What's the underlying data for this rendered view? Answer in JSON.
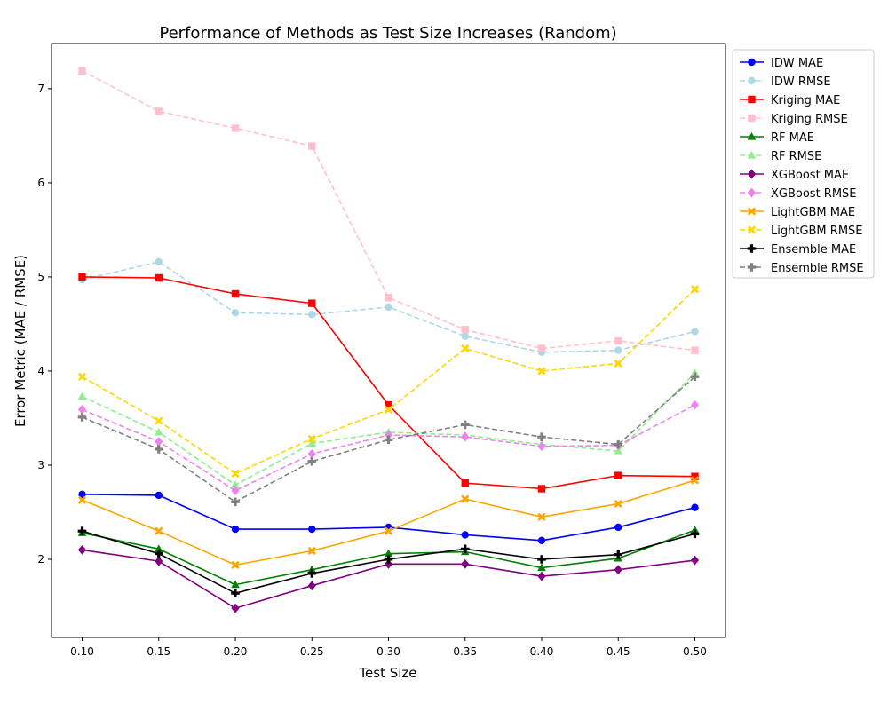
{
  "chart_data": {
    "type": "line",
    "title": "Performance of Methods as Test Size Increases (Random)",
    "xlabel": "Test Size",
    "ylabel": "Error Metric (MAE / RMSE)",
    "xlim": [
      0.08,
      0.52
    ],
    "ylim": [
      1.17,
      7.48
    ],
    "x": [
      0.1,
      0.15,
      0.2,
      0.25,
      0.3,
      0.35,
      0.4,
      0.45,
      0.5
    ],
    "xticks": [
      "0.10",
      "0.15",
      "0.20",
      "0.25",
      "0.30",
      "0.35",
      "0.40",
      "0.45",
      "0.50"
    ],
    "yticks": [
      2,
      3,
      4,
      5,
      6,
      7
    ],
    "grid": false,
    "legend_position": "outside-right",
    "series": [
      {
        "name": "IDW MAE",
        "color": "#0000ff",
        "dash": "solid",
        "marker": "circle",
        "values": [
          2.69,
          2.68,
          2.32,
          2.32,
          2.34,
          2.26,
          2.2,
          2.34,
          2.55
        ]
      },
      {
        "name": "IDW RMSE",
        "color": "#add8e6",
        "dash": "dashed",
        "marker": "circle",
        "values": [
          4.97,
          5.16,
          4.62,
          4.6,
          4.68,
          4.37,
          4.2,
          4.22,
          4.42
        ]
      },
      {
        "name": "Kriging MAE",
        "color": "#ff0000",
        "dash": "solid",
        "marker": "square",
        "values": [
          5.0,
          4.99,
          4.82,
          4.72,
          3.64,
          2.81,
          2.75,
          2.89,
          2.88
        ]
      },
      {
        "name": "Kriging RMSE",
        "color": "#ffc0cb",
        "dash": "dashed",
        "marker": "square",
        "values": [
          7.19,
          6.76,
          6.58,
          6.39,
          4.78,
          4.44,
          4.24,
          4.32,
          4.22
        ]
      },
      {
        "name": "RF MAE",
        "color": "#008000",
        "dash": "solid",
        "marker": "triangle",
        "values": [
          2.28,
          2.11,
          1.73,
          1.89,
          2.06,
          2.08,
          1.91,
          2.01,
          2.31
        ]
      },
      {
        "name": "RF RMSE",
        "color": "#90ee90",
        "dash": "dashed",
        "marker": "triangle",
        "values": [
          3.73,
          3.35,
          2.79,
          3.23,
          3.35,
          3.32,
          3.22,
          3.15,
          3.98
        ]
      },
      {
        "name": "XGBoost MAE",
        "color": "#800080",
        "dash": "solid",
        "marker": "diamond",
        "values": [
          2.1,
          1.98,
          1.48,
          1.72,
          1.95,
          1.95,
          1.82,
          1.89,
          1.99
        ]
      },
      {
        "name": "XGBoost RMSE",
        "color": "#ee82ee",
        "dash": "dashed",
        "marker": "diamond",
        "values": [
          3.59,
          3.25,
          2.73,
          3.12,
          3.32,
          3.3,
          3.2,
          3.21,
          3.64
        ]
      },
      {
        "name": "LightGBM MAE",
        "color": "#ffa500",
        "dash": "solid",
        "marker": "x",
        "values": [
          2.63,
          2.3,
          1.94,
          2.09,
          2.3,
          2.64,
          2.45,
          2.59,
          2.84
        ]
      },
      {
        "name": "LightGBM RMSE",
        "color": "#ffd700",
        "dash": "dashed",
        "marker": "x",
        "values": [
          3.94,
          3.47,
          2.91,
          3.28,
          3.59,
          4.24,
          4.0,
          4.08,
          4.87
        ]
      },
      {
        "name": "Ensemble MAE",
        "color": "#000000",
        "dash": "solid",
        "marker": "plus",
        "values": [
          2.3,
          2.06,
          1.64,
          1.85,
          2.0,
          2.11,
          2.0,
          2.05,
          2.27
        ]
      },
      {
        "name": "Ensemble RMSE",
        "color": "#808080",
        "dash": "dashed",
        "marker": "plus",
        "values": [
          3.51,
          3.17,
          2.61,
          3.04,
          3.27,
          3.43,
          3.3,
          3.22,
          3.94
        ]
      }
    ]
  }
}
